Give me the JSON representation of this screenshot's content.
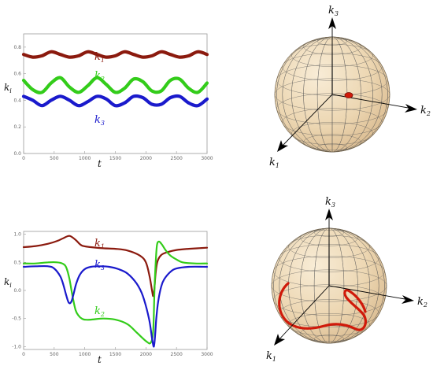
{
  "chart_data": [
    {
      "type": "line",
      "xlabel": "t",
      "ylabel": "k_i",
      "xlim": [
        0,
        3000
      ],
      "ylim": [
        0,
        0.9
      ],
      "xticks": [
        "0",
        "500",
        "1000",
        "1500",
        "2000",
        "2500",
        "3000"
      ],
      "yticks": [
        "0.0",
        "0.2",
        "0.4",
        "0.6",
        "0.8"
      ],
      "series": [
        {
          "name": "k1",
          "color": "#8b1a0e",
          "x": [
            0,
            150,
            300,
            450,
            600,
            750,
            900,
            1050,
            1200,
            1350,
            1500,
            1650,
            1800,
            1950,
            2100,
            2250,
            2400,
            2550,
            2700,
            2850,
            3000
          ],
          "y": [
            0.745,
            0.725,
            0.735,
            0.765,
            0.745,
            0.725,
            0.735,
            0.765,
            0.745,
            0.725,
            0.735,
            0.765,
            0.745,
            0.725,
            0.735,
            0.765,
            0.745,
            0.725,
            0.735,
            0.765,
            0.745
          ]
        },
        {
          "name": "k2",
          "color": "#33cc1a",
          "x": [
            0,
            150,
            300,
            450,
            600,
            750,
            900,
            1050,
            1200,
            1350,
            1500,
            1650,
            1800,
            1950,
            2100,
            2250,
            2400,
            2550,
            2700,
            2850,
            3000
          ],
          "y": [
            0.55,
            0.48,
            0.46,
            0.53,
            0.57,
            0.5,
            0.46,
            0.51,
            0.57,
            0.52,
            0.46,
            0.49,
            0.56,
            0.54,
            0.47,
            0.47,
            0.55,
            0.56,
            0.49,
            0.46,
            0.53
          ]
        },
        {
          "name": "k3",
          "color": "#1a1acc",
          "x": [
            0,
            150,
            300,
            450,
            600,
            750,
            900,
            1050,
            1200,
            1350,
            1500,
            1650,
            1800,
            1950,
            2100,
            2250,
            2400,
            2550,
            2700,
            2850,
            3000
          ],
          "y": [
            0.43,
            0.4,
            0.36,
            0.4,
            0.43,
            0.4,
            0.36,
            0.39,
            0.43,
            0.41,
            0.36,
            0.38,
            0.43,
            0.42,
            0.37,
            0.37,
            0.42,
            0.43,
            0.38,
            0.36,
            0.41
          ]
        }
      ],
      "labels": {
        "k1": "k",
        "k1_sub": "1",
        "k2": "k",
        "k2_sub": "2",
        "k3": "k",
        "k3_sub": "3"
      }
    },
    {
      "type": "line",
      "xlabel": "t",
      "ylabel": "k_i",
      "xlim": [
        0,
        3000
      ],
      "ylim": [
        -1.05,
        1.05
      ],
      "xticks": [
        "0",
        "500",
        "1000",
        "1500",
        "2000",
        "2500",
        "3000"
      ],
      "yticks": [
        "-1.0",
        "-0.5",
        "0.0",
        "0.5",
        "1.0"
      ],
      "series": [
        {
          "name": "k1",
          "color": "#8b1a0e",
          "x": [
            0,
            200,
            400,
            550,
            650,
            750,
            850,
            950,
            1100,
            1300,
            1500,
            1700,
            1900,
            2000,
            2060,
            2100,
            2120,
            2140,
            2160,
            2190,
            2250,
            2350,
            2500,
            2700,
            3000
          ],
          "y": [
            0.77,
            0.79,
            0.83,
            0.88,
            0.93,
            0.97,
            0.9,
            0.8,
            0.77,
            0.75,
            0.74,
            0.71,
            0.62,
            0.5,
            0.25,
            0.0,
            -0.1,
            0.05,
            0.32,
            0.52,
            0.63,
            0.68,
            0.72,
            0.74,
            0.76
          ]
        },
        {
          "name": "k2",
          "color": "#33cc1a",
          "x": [
            0,
            200,
            400,
            550,
            650,
            700,
            750,
            800,
            850,
            900,
            950,
            1000,
            1100,
            1300,
            1500,
            1700,
            1850,
            2000,
            2080,
            2120,
            2140,
            2160,
            2180,
            2210,
            2260,
            2320,
            2400,
            2500,
            2600,
            2800,
            3000
          ],
          "y": [
            0.48,
            0.48,
            0.5,
            0.5,
            0.47,
            0.4,
            0.2,
            -0.1,
            -0.35,
            -0.45,
            -0.5,
            -0.52,
            -0.52,
            -0.5,
            -0.52,
            -0.6,
            -0.75,
            -0.9,
            -0.93,
            -0.7,
            0.0,
            0.5,
            0.8,
            0.87,
            0.82,
            0.72,
            0.62,
            0.55,
            0.5,
            0.48,
            0.48
          ]
        },
        {
          "name": "k3",
          "color": "#1a1acc",
          "x": [
            0,
            200,
            400,
            500,
            600,
            650,
            700,
            740,
            780,
            820,
            860,
            920,
            1000,
            1100,
            1250,
            1400,
            1550,
            1700,
            1850,
            1950,
            2050,
            2100,
            2130,
            2150,
            2170,
            2200,
            2250,
            2300,
            2400,
            2500,
            2700,
            3000
          ],
          "y": [
            0.42,
            0.43,
            0.43,
            0.39,
            0.25,
            0.1,
            -0.1,
            -0.22,
            -0.2,
            -0.05,
            0.12,
            0.28,
            0.38,
            0.42,
            0.43,
            0.42,
            0.38,
            0.3,
            0.12,
            -0.1,
            -0.5,
            -0.85,
            -1.0,
            -0.8,
            -0.5,
            -0.2,
            0.07,
            0.2,
            0.33,
            0.39,
            0.42,
            0.42
          ]
        }
      ],
      "labels": {
        "k1": "k",
        "k1_sub": "1",
        "k2": "k",
        "k2_sub": "2",
        "k3": "k",
        "k3_sub": "3"
      }
    }
  ],
  "spheres": [
    {
      "axis1": "k",
      "axis1_sub": "1",
      "axis2": "k",
      "axis2_sub": "2",
      "axis3": "k",
      "axis3_sub": "3"
    },
    {
      "axis1": "k",
      "axis1_sub": "1",
      "axis2": "k",
      "axis2_sub": "2",
      "axis3": "k",
      "axis3_sub": "3"
    }
  ]
}
